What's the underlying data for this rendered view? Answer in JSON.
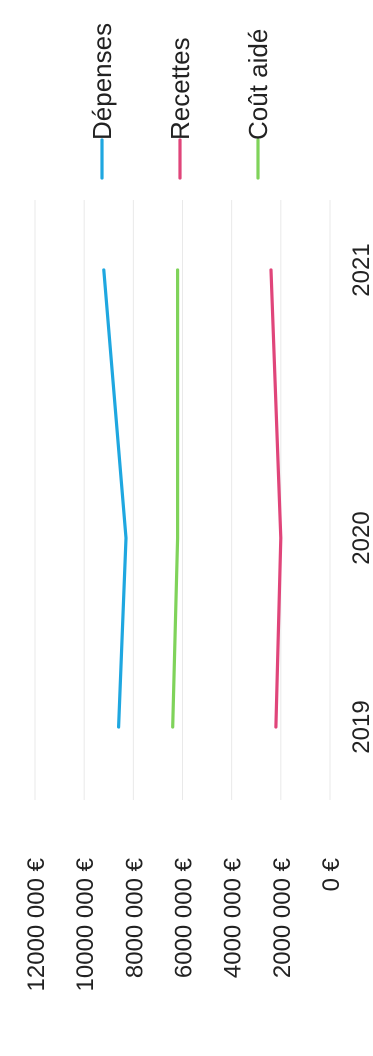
{
  "chart_data": {
    "type": "line",
    "orientation": "rotated-90",
    "title": "",
    "xlabel": "",
    "ylabel": "",
    "categories": [
      "2019",
      "2020",
      "2021"
    ],
    "y_ticks": [
      "0 €",
      "2000 000 €",
      "4000 000 €",
      "6000 000 €",
      "8000 000 €",
      "10000 000 €",
      "12000 000 €"
    ],
    "ylim": [
      0,
      12000000
    ],
    "grid": true,
    "legend_position": "top",
    "series": [
      {
        "name": "Dépenses",
        "color": "#1fa7e0",
        "values": [
          8600000,
          8300000,
          9200000
        ]
      },
      {
        "name": "Recettes",
        "color": "#e0457a",
        "values": [
          2200000,
          2000000,
          2400000
        ]
      },
      {
        "name": "Coût aidé",
        "color": "#7fd35a",
        "values": [
          6400000,
          6200000,
          6200000
        ]
      }
    ]
  }
}
